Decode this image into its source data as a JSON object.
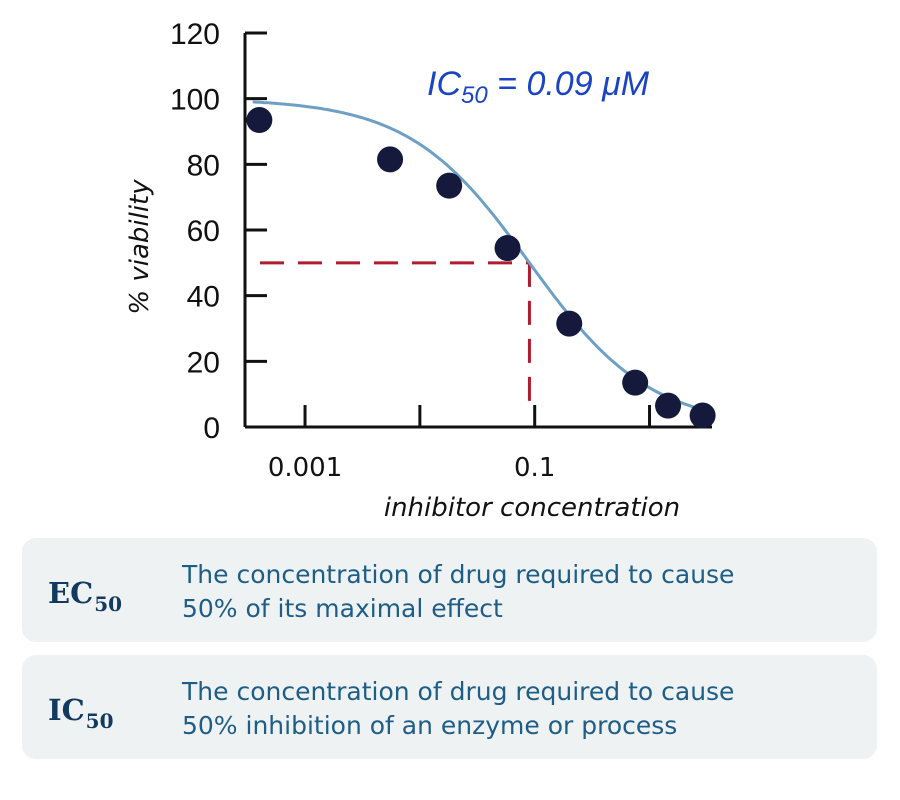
{
  "chart_data": {
    "type": "scatter",
    "x_scale": "log",
    "xlabel": "inhibitor concentration",
    "ylabel": "% viability",
    "ylim": [
      0,
      120
    ],
    "xlim": [
      0.0003,
      3.5
    ],
    "y_ticks": [
      "0",
      "20",
      "40",
      "60",
      "80",
      "100",
      "120"
    ],
    "x_tick_labels": [
      {
        "value": 0.001,
        "label": "0.001"
      },
      {
        "value": 0.1,
        "label": "0.1"
      }
    ],
    "x_minor_ticks": [
      0.001,
      0.01,
      0.1,
      1
    ],
    "points": [
      {
        "x": 0.0004,
        "y": 93.5
      },
      {
        "x": 0.0055,
        "y": 81.5
      },
      {
        "x": 0.018,
        "y": 73.5
      },
      {
        "x": 0.058,
        "y": 54.5
      },
      {
        "x": 0.2,
        "y": 31.5
      },
      {
        "x": 0.75,
        "y": 13.5
      },
      {
        "x": 1.45,
        "y": 6.5
      },
      {
        "x": 2.9,
        "y": 3.5
      }
    ],
    "fit_curve": {
      "top": 100,
      "bottom": 0,
      "ic50": 0.09,
      "hill": 0.83
    },
    "ic50_marker": {
      "x": 0.09,
      "y": 50
    },
    "annotation": {
      "prefix": "IC",
      "sub": "50",
      "suffix": " = 0.09 μM"
    },
    "colors": {
      "points": "#151a3d",
      "curve": "#6e9fc4",
      "dashed": "#b01c2e",
      "annotation": "#1a44c4",
      "axis": "#111111"
    }
  },
  "definitions": [
    {
      "term": "EC",
      "sub": "50",
      "line1": "The concentration of drug required to cause",
      "line2": "50% of its maximal effect"
    },
    {
      "term": "IC",
      "sub": "50",
      "line1": "The concentration of drug required to cause",
      "line2": "50% inhibition of an enzyme or process"
    }
  ]
}
